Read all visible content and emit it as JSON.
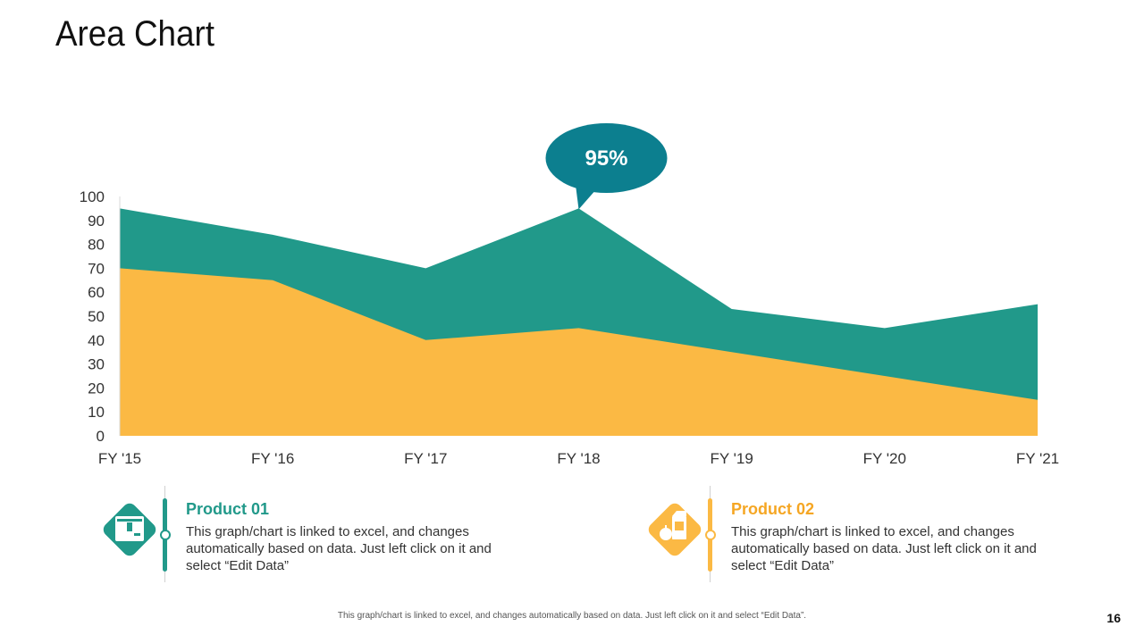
{
  "page": {
    "title": "Area Chart",
    "footer": "This graph/chart is linked to excel, and changes automatically based on data. Just left click on it and select “Edit Data”.",
    "page_number": "16"
  },
  "colors": {
    "product01": "#21998A",
    "product02": "#FBB944",
    "callout": "#0C7F8F"
  },
  "callout": {
    "label": "95%",
    "category": "FY '18"
  },
  "legend": [
    {
      "title": "Product 01",
      "icon": "box-icon",
      "description": "This graph/chart is linked to excel, and changes automatically based on data. Just left click on it and select “Edit Data”"
    },
    {
      "title": "Product 02",
      "icon": "grocery-icon",
      "description": "This graph/chart is linked to excel, and changes automatically based on data. Just left click on it and select “Edit Data”"
    }
  ],
  "chart_data": {
    "type": "area",
    "title": "Area Chart",
    "categories": [
      "FY '15",
      "FY '16",
      "FY '17",
      "FY '18",
      "FY '19",
      "FY '20",
      "FY '21"
    ],
    "series": [
      {
        "name": "Product 01",
        "values": [
          95,
          84,
          70,
          95,
          53,
          45,
          55
        ]
      },
      {
        "name": "Product 02",
        "values": [
          70,
          65,
          40,
          45,
          35,
          25,
          15
        ]
      }
    ],
    "ylim": [
      0,
      100
    ],
    "yticks": [
      0,
      10,
      20,
      30,
      40,
      50,
      60,
      70,
      80,
      90,
      100
    ],
    "xlabel": "",
    "ylabel": "",
    "grid": false
  }
}
